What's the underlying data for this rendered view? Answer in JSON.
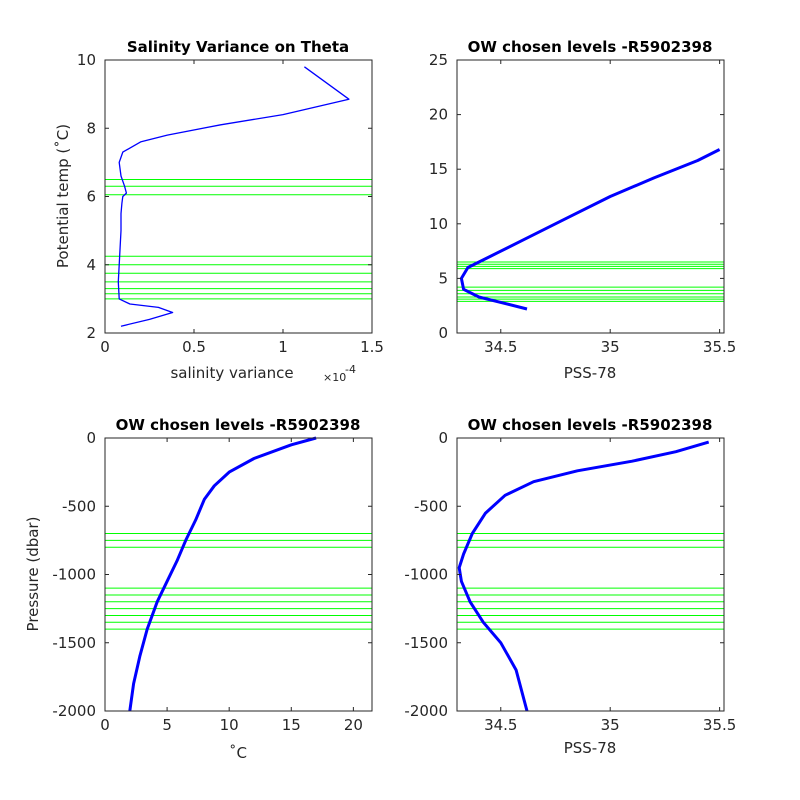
{
  "colors": {
    "profile": "#0000ff",
    "level": "#00ff00",
    "axis": "#262626"
  },
  "chart_data": [
    {
      "type": "line",
      "title": "Salinity Variance on Theta",
      "xlabel": "salinity variance",
      "x_exponent": "×10",
      "x_exponent_power": "-4",
      "ylabel": "Potential temp (˚C)",
      "xlim": [
        0,
        1.5
      ],
      "ylim": [
        2,
        10
      ],
      "xticks": [
        {
          "v": 0,
          "t": "0"
        },
        {
          "v": 0.5,
          "t": "0.5"
        },
        {
          "v": 1,
          "t": "1"
        },
        {
          "v": 1.5,
          "t": "1.5"
        }
      ],
      "yticks": [
        {
          "v": 2,
          "t": "2"
        },
        {
          "v": 4,
          "t": "4"
        },
        {
          "v": 6,
          "t": "6"
        },
        {
          "v": 8,
          "t": "8"
        },
        {
          "v": 10,
          "t": "10"
        }
      ],
      "series": [
        {
          "x": [
            0.09,
            0.25,
            0.38,
            0.3,
            0.14,
            0.08,
            0.075,
            0.08,
            0.085,
            0.09,
            0.09,
            0.095,
            0.1,
            0.12,
            0.11,
            0.09,
            0.08,
            0.1,
            0.2,
            0.35,
            0.65,
            1.0,
            1.37,
            1.12
          ],
          "y": [
            2.2,
            2.4,
            2.6,
            2.75,
            2.85,
            3.0,
            3.5,
            4.0,
            4.5,
            5.0,
            5.5,
            5.8,
            6.0,
            6.1,
            6.3,
            6.6,
            7.0,
            7.3,
            7.6,
            7.8,
            8.1,
            8.4,
            8.85,
            9.8
          ]
        }
      ],
      "levels_y": [
        3.0,
        3.15,
        3.3,
        3.5,
        3.75,
        4.0,
        4.25,
        6.05,
        6.3,
        6.5
      ]
    },
    {
      "type": "line",
      "title": "OW chosen levels -R5902398",
      "xlabel": "PSS-78",
      "ylabel": "",
      "xlim": [
        34.3,
        35.52
      ],
      "ylim": [
        0,
        25
      ],
      "xticks": [
        {
          "v": 34.5,
          "t": "34.5"
        },
        {
          "v": 35,
          "t": "35"
        },
        {
          "v": 35.5,
          "t": "35.5"
        }
      ],
      "yticks": [
        {
          "v": 0,
          "t": "0"
        },
        {
          "v": 5,
          "t": "5"
        },
        {
          "v": 10,
          "t": "10"
        },
        {
          "v": 15,
          "t": "15"
        },
        {
          "v": 20,
          "t": "20"
        },
        {
          "v": 25,
          "t": "25"
        }
      ],
      "series": [
        {
          "x": [
            34.62,
            34.5,
            34.4,
            34.33,
            34.32,
            34.35,
            34.45,
            34.6,
            34.8,
            35.0,
            35.2,
            35.4,
            35.5
          ],
          "y": [
            2.2,
            2.8,
            3.3,
            4.0,
            5.0,
            6.0,
            7.0,
            8.5,
            10.5,
            12.5,
            14.2,
            15.8,
            16.8
          ]
        }
      ],
      "levels_y": [
        2.9,
        3.1,
        3.3,
        3.6,
        3.9,
        4.2,
        5.9,
        6.1,
        6.3,
        6.5
      ]
    },
    {
      "type": "line",
      "title": "OW chosen levels -R5902398",
      "xlabel": "˚C",
      "ylabel": "Pressure (dbar)",
      "xlim": [
        0,
        21.5
      ],
      "ylim": [
        -2000,
        0
      ],
      "xticks": [
        {
          "v": 0,
          "t": "0"
        },
        {
          "v": 5,
          "t": "5"
        },
        {
          "v": 10,
          "t": "10"
        },
        {
          "v": 15,
          "t": "15"
        },
        {
          "v": 20,
          "t": "20"
        }
      ],
      "yticks": [
        {
          "v": 0,
          "t": "0"
        },
        {
          "v": -500,
          "t": "-500"
        },
        {
          "v": -1000,
          "t": "-1000"
        },
        {
          "v": -1500,
          "t": "-1500"
        },
        {
          "v": -2000,
          "t": "-2000"
        }
      ],
      "series": [
        {
          "x": [
            2.0,
            2.3,
            2.8,
            3.4,
            4.2,
            5.0,
            5.8,
            6.5,
            7.3,
            8.0,
            8.8,
            10.0,
            12.0,
            15.0,
            17.0
          ],
          "y": [
            -2000,
            -1800,
            -1600,
            -1400,
            -1200,
            -1050,
            -900,
            -750,
            -600,
            -450,
            -350,
            -250,
            -150,
            -50,
            0
          ]
        }
      ],
      "levels_y": [
        -700,
        -750,
        -800,
        -1100,
        -1150,
        -1200,
        -1250,
        -1300,
        -1350,
        -1400
      ]
    },
    {
      "type": "line",
      "title": "OW chosen levels -R5902398",
      "xlabel": "PSS-78",
      "ylabel": "",
      "xlim": [
        34.3,
        35.52
      ],
      "ylim": [
        -2000,
        0
      ],
      "xticks": [
        {
          "v": 34.5,
          "t": "34.5"
        },
        {
          "v": 35,
          "t": "35"
        },
        {
          "v": 35.5,
          "t": "35.5"
        }
      ],
      "yticks": [
        {
          "v": 0,
          "t": "0"
        },
        {
          "v": -500,
          "t": "-500"
        },
        {
          "v": -1000,
          "t": "-1000"
        },
        {
          "v": -1500,
          "t": "-1500"
        },
        {
          "v": -2000,
          "t": "-2000"
        }
      ],
      "series": [
        {
          "x": [
            34.62,
            34.57,
            34.5,
            34.42,
            34.36,
            34.32,
            34.31,
            34.33,
            34.37,
            34.43,
            34.52,
            34.65,
            34.85,
            35.1,
            35.3,
            35.45
          ],
          "y": [
            -2000,
            -1700,
            -1500,
            -1350,
            -1200,
            -1050,
            -950,
            -850,
            -700,
            -550,
            -420,
            -320,
            -240,
            -170,
            -100,
            -30
          ]
        }
      ],
      "levels_y": [
        -700,
        -750,
        -800,
        -1100,
        -1150,
        -1200,
        -1250,
        -1300,
        -1350,
        -1400
      ]
    }
  ]
}
